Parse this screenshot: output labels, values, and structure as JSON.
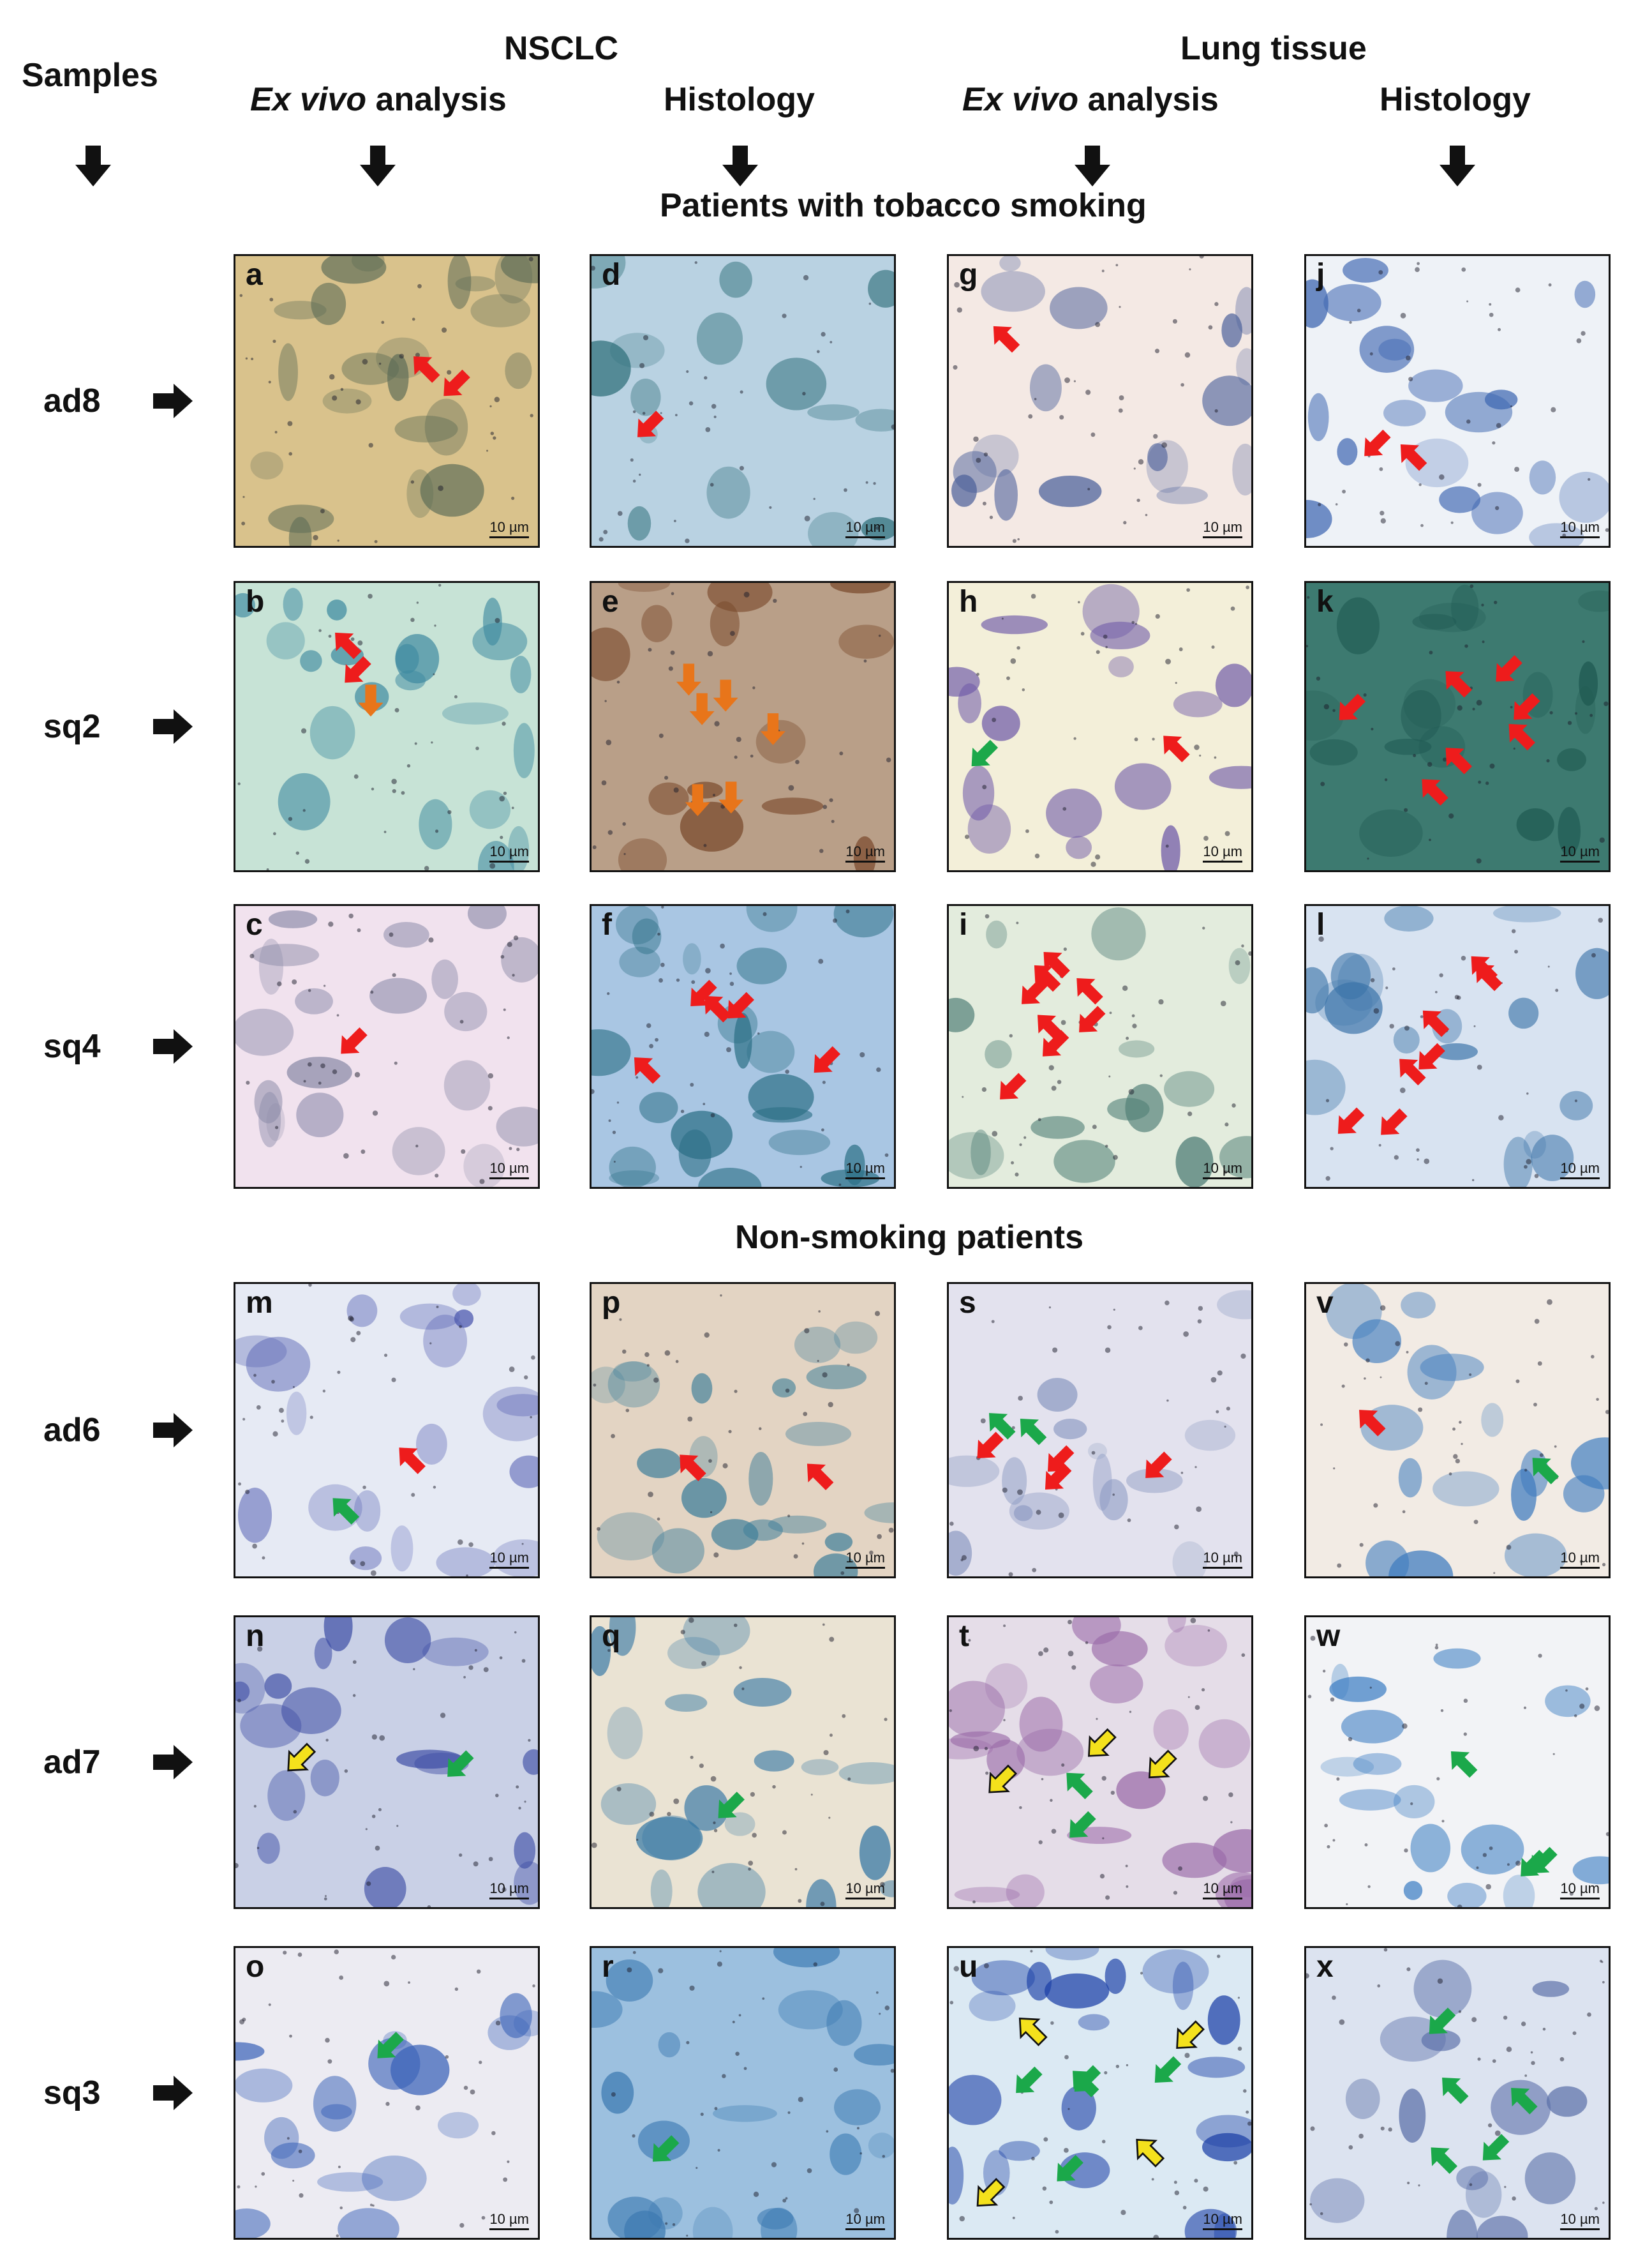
{
  "headers": {
    "samples": "Samples",
    "nsclc": "NSCLC",
    "lung_tissue": "Lung tissue",
    "col1_ital": "Ex vivo",
    "col1_rest": " analysis",
    "col2": "Histology",
    "col3_ital": "Ex vivo",
    "col3_rest": " analysis",
    "col4": "Histology"
  },
  "sections": {
    "smoking": "Patients with tobacco smoking",
    "nonsmoking": "Non-smoking patients"
  },
  "rows": [
    {
      "label": "ad8"
    },
    {
      "label": "sq2"
    },
    {
      "label": "sq4"
    },
    {
      "label": "ad6"
    },
    {
      "label": "ad7"
    },
    {
      "label": "sq3"
    }
  ],
  "panels": [
    {
      "letter": "a",
      "scale": "10 µm",
      "bg": "#d9c28c",
      "cells": "#5a6a55",
      "arrows": [
        {
          "c": "red",
          "n": 2
        }
      ]
    },
    {
      "letter": "d",
      "scale": "10 µm",
      "bg": "#b9d2e2",
      "cells": "#2f6f7a",
      "arrows": [
        {
          "c": "red",
          "n": 1
        }
      ]
    },
    {
      "letter": "g",
      "scale": "10 µm",
      "bg": "#f4e9e4",
      "cells": "#4a5f9a",
      "arrows": [
        {
          "c": "red",
          "n": 1
        }
      ]
    },
    {
      "letter": "j",
      "scale": "10 µm",
      "bg": "#eef2f7",
      "cells": "#3f67b2",
      "arrows": [
        {
          "c": "red",
          "n": 2
        }
      ]
    },
    {
      "letter": "b",
      "scale": "10 µm",
      "bg": "#c7e3d6",
      "cells": "#3f8aa0",
      "arrows": [
        {
          "c": "red",
          "n": 2
        },
        {
          "c": "orange",
          "n": 1
        }
      ]
    },
    {
      "letter": "e",
      "scale": "10 µm",
      "bg": "#b99f88",
      "cells": "#7a4a2c",
      "arrows": [
        {
          "c": "orange",
          "n": 6
        }
      ]
    },
    {
      "letter": "h",
      "scale": "10 µm",
      "bg": "#f3efd9",
      "cells": "#6f5aa8",
      "arrows": [
        {
          "c": "red",
          "n": 1
        },
        {
          "c": "green",
          "n": 1
        }
      ]
    },
    {
      "letter": "k",
      "scale": "10 µm",
      "bg": "#3d7a70",
      "cells": "#1f5a52",
      "arrows": [
        {
          "c": "red",
          "n": 7
        }
      ]
    },
    {
      "letter": "c",
      "scale": "10 µm",
      "bg": "#f1e2ee",
      "cells": "#8a8aa8",
      "arrows": [
        {
          "c": "red",
          "n": 1
        }
      ]
    },
    {
      "letter": "f",
      "scale": "10 µm",
      "bg": "#a9c6e3",
      "cells": "#2c6f86",
      "arrows": [
        {
          "c": "red",
          "n": 5
        }
      ]
    },
    {
      "letter": "i",
      "scale": "10 µm",
      "bg": "#e3ecdd",
      "cells": "#4f7e76",
      "arrows": [
        {
          "c": "red",
          "n": 8
        }
      ]
    },
    {
      "letter": "l",
      "scale": "10 µm",
      "bg": "#d8e3f1",
      "cells": "#3a73a8",
      "arrows": [
        {
          "c": "red",
          "n": 7
        }
      ]
    },
    {
      "letter": "m",
      "scale": "10 µm",
      "bg": "#e6eaf4",
      "cells": "#4e5ab0",
      "arrows": [
        {
          "c": "red",
          "n": 1
        },
        {
          "c": "green",
          "n": 1
        }
      ]
    },
    {
      "letter": "p",
      "scale": "10 µm",
      "bg": "#e3d4c3",
      "cells": "#3f7f9a",
      "arrows": [
        {
          "c": "red",
          "n": 2
        }
      ]
    },
    {
      "letter": "s",
      "scale": "10 µm",
      "bg": "#e3e2ee",
      "cells": "#8c9ac2",
      "arrows": [
        {
          "c": "red",
          "n": 4
        },
        {
          "c": "green",
          "n": 2
        }
      ]
    },
    {
      "letter": "v",
      "scale": "10 µm",
      "bg": "#f2ebe4",
      "cells": "#3f7cbf",
      "arrows": [
        {
          "c": "red",
          "n": 1
        },
        {
          "c": "green",
          "n": 1
        }
      ]
    },
    {
      "letter": "n",
      "scale": "10 µm",
      "bg": "#c9d0e6",
      "cells": "#3a4aa3",
      "arrows": [
        {
          "c": "green",
          "n": 1
        },
        {
          "c": "yellow",
          "n": 1
        }
      ]
    },
    {
      "letter": "q",
      "scale": "10 µm",
      "bg": "#eae3d3",
      "cells": "#3a7aa6",
      "arrows": [
        {
          "c": "green",
          "n": 1
        }
      ]
    },
    {
      "letter": "t",
      "scale": "10 µm",
      "bg": "#e5dde8",
      "cells": "#9a6aa8",
      "arrows": [
        {
          "c": "green",
          "n": 2
        },
        {
          "c": "yellow",
          "n": 3
        }
      ]
    },
    {
      "letter": "w",
      "scale": "10 µm",
      "bg": "#f2f3f6",
      "cells": "#3d7ec3",
      "arrows": [
        {
          "c": "green",
          "n": 3
        }
      ]
    },
    {
      "letter": "o",
      "scale": "10 µm",
      "bg": "#ecebf2",
      "cells": "#3a62b8",
      "arrows": [
        {
          "c": "green",
          "n": 1
        }
      ]
    },
    {
      "letter": "r",
      "scale": "10 µm",
      "bg": "#9cc0df",
      "cells": "#3d7ab2",
      "arrows": [
        {
          "c": "green",
          "n": 1
        }
      ]
    },
    {
      "letter": "u",
      "scale": "10 µm",
      "bg": "#dbe9f3",
      "cells": "#1a3fa6",
      "arrows": [
        {
          "c": "green",
          "n": 5
        },
        {
          "c": "yellow",
          "n": 4
        }
      ]
    },
    {
      "letter": "x",
      "scale": "10 µm",
      "bg": "#dce3f0",
      "cells": "#5a6fa8",
      "arrows": [
        {
          "c": "green",
          "n": 5
        }
      ]
    }
  ],
  "colors": {
    "red": "#ee1c1c",
    "orange": "#e8751a",
    "green": "#1ba84a",
    "yellow": "#f4e11c"
  }
}
